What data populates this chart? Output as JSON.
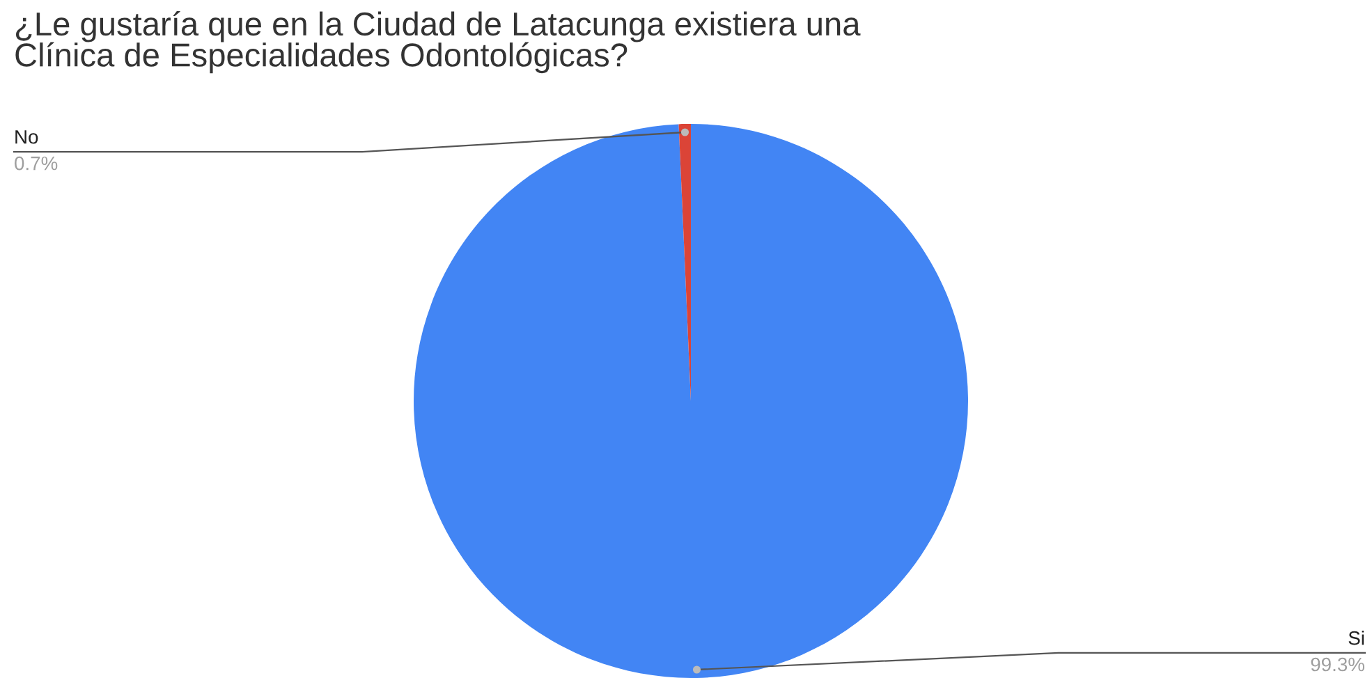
{
  "chart_data": {
    "type": "pie",
    "title": "¿Le gustaría que en la Ciudad de Latacunga existiera una\nClínica de Especialidades Odontológicas?",
    "categories": [
      "Si",
      "No"
    ],
    "values": [
      99.3,
      0.7
    ],
    "colors": [
      "#4285f4",
      "#db4437"
    ],
    "value_labels": [
      "99.3%",
      "0.7%"
    ],
    "legend": false
  }
}
